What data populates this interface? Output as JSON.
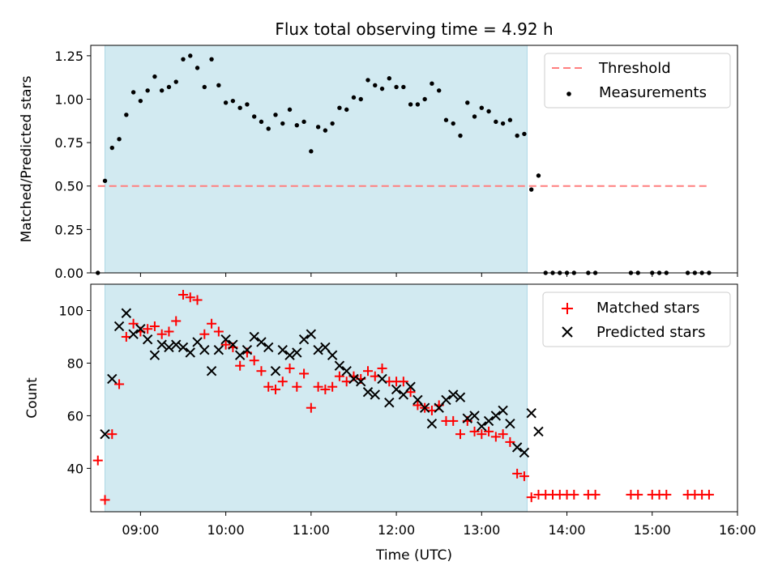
{
  "chart_data": [
    {
      "type": "scatter",
      "title": "Flux total observing time = 4.92 h",
      "ylabel": "Matched/Predicted stars",
      "xlabel": "",
      "xlim": [
        "08:25",
        "16:00"
      ],
      "ylim": [
        0,
        1.31
      ],
      "yticks": [
        "0.00",
        "0.25",
        "0.50",
        "0.75",
        "1.00",
        "1.25"
      ],
      "shaded_region": {
        "x_start": "08:35",
        "x_end": "13:32",
        "color": "#add8e6"
      },
      "legend_position": "upper right",
      "series": [
        {
          "name": "Threshold",
          "kind": "line",
          "style": "dashed",
          "color": "#ff7f7f",
          "x": [
            "08:30",
            "15:40"
          ],
          "y": [
            0.5,
            0.5
          ]
        },
        {
          "name": "Measurements",
          "kind": "scatter",
          "marker": "dot",
          "color": "#000000",
          "points": [
            [
              "08:30",
              0.0
            ],
            [
              "08:35",
              0.53
            ],
            [
              "08:40",
              0.72
            ],
            [
              "08:45",
              0.77
            ],
            [
              "08:50",
              0.91
            ],
            [
              "08:55",
              1.04
            ],
            [
              "09:00",
              0.99
            ],
            [
              "09:05",
              1.05
            ],
            [
              "09:10",
              1.13
            ],
            [
              "09:15",
              1.05
            ],
            [
              "09:20",
              1.07
            ],
            [
              "09:25",
              1.1
            ],
            [
              "09:30",
              1.23
            ],
            [
              "09:35",
              1.25
            ],
            [
              "09:40",
              1.18
            ],
            [
              "09:45",
              1.07
            ],
            [
              "09:50",
              1.23
            ],
            [
              "09:55",
              1.08
            ],
            [
              "10:00",
              0.98
            ],
            [
              "10:05",
              0.99
            ],
            [
              "10:10",
              0.95
            ],
            [
              "10:15",
              0.97
            ],
            [
              "10:20",
              0.9
            ],
            [
              "10:25",
              0.87
            ],
            [
              "10:30",
              0.83
            ],
            [
              "10:35",
              0.91
            ],
            [
              "10:40",
              0.86
            ],
            [
              "10:45",
              0.94
            ],
            [
              "10:50",
              0.85
            ],
            [
              "10:55",
              0.87
            ],
            [
              "11:00",
              0.7
            ],
            [
              "11:05",
              0.84
            ],
            [
              "11:10",
              0.82
            ],
            [
              "11:15",
              0.86
            ],
            [
              "11:20",
              0.95
            ],
            [
              "11:25",
              0.94
            ],
            [
              "11:30",
              1.01
            ],
            [
              "11:35",
              1.0
            ],
            [
              "11:40",
              1.11
            ],
            [
              "11:45",
              1.08
            ],
            [
              "11:50",
              1.06
            ],
            [
              "11:55",
              1.12
            ],
            [
              "12:00",
              1.07
            ],
            [
              "12:05",
              1.07
            ],
            [
              "12:10",
              0.97
            ],
            [
              "12:15",
              0.97
            ],
            [
              "12:20",
              1.0
            ],
            [
              "12:25",
              1.09
            ],
            [
              "12:30",
              1.05
            ],
            [
              "12:35",
              0.88
            ],
            [
              "12:40",
              0.86
            ],
            [
              "12:45",
              0.79
            ],
            [
              "12:50",
              0.98
            ],
            [
              "12:55",
              0.9
            ],
            [
              "13:00",
              0.95
            ],
            [
              "13:05",
              0.93
            ],
            [
              "13:10",
              0.87
            ],
            [
              "13:15",
              0.86
            ],
            [
              "13:20",
              0.88
            ],
            [
              "13:25",
              0.79
            ],
            [
              "13:30",
              0.8
            ],
            [
              "13:35",
              0.48
            ],
            [
              "13:40",
              0.56
            ],
            [
              "13:45",
              0.0
            ],
            [
              "13:50",
              0.0
            ],
            [
              "13:55",
              0.0
            ],
            [
              "14:00",
              0.0
            ],
            [
              "14:05",
              0.0
            ],
            [
              "14:15",
              0.0
            ],
            [
              "14:20",
              0.0
            ],
            [
              "14:45",
              0.0
            ],
            [
              "14:50",
              0.0
            ],
            [
              "15:00",
              0.0
            ],
            [
              "15:05",
              0.0
            ],
            [
              "15:10",
              0.0
            ],
            [
              "15:25",
              0.0
            ],
            [
              "15:30",
              0.0
            ],
            [
              "15:35",
              0.0
            ],
            [
              "15:40",
              0.0
            ]
          ]
        }
      ]
    },
    {
      "type": "scatter",
      "title": "",
      "xlabel": "Time (UTC)",
      "ylabel": "Count",
      "xlim": [
        "08:25",
        "16:00"
      ],
      "ylim": [
        23.5,
        110
      ],
      "xticks": [
        "09:00",
        "10:00",
        "11:00",
        "12:00",
        "13:00",
        "14:00",
        "15:00",
        "16:00"
      ],
      "yticks": [
        "40",
        "60",
        "80",
        "100"
      ],
      "shaded_region": {
        "x_start": "08:35",
        "x_end": "13:32",
        "color": "#add8e6"
      },
      "legend_position": "upper right",
      "series": [
        {
          "name": "Matched stars",
          "kind": "scatter",
          "marker": "plus",
          "color": "#ff0000",
          "points": [
            [
              "08:30",
              43
            ],
            [
              "08:35",
              28
            ],
            [
              "08:40",
              53
            ],
            [
              "08:45",
              72
            ],
            [
              "08:50",
              90
            ],
            [
              "08:55",
              95
            ],
            [
              "09:00",
              92
            ],
            [
              "09:05",
              93
            ],
            [
              "09:10",
              94
            ],
            [
              "09:15",
              91
            ],
            [
              "09:20",
              92
            ],
            [
              "09:25",
              96
            ],
            [
              "09:30",
              106
            ],
            [
              "09:35",
              105
            ],
            [
              "09:40",
              104
            ],
            [
              "09:45",
              91
            ],
            [
              "09:50",
              95
            ],
            [
              "09:55",
              92
            ],
            [
              "10:00",
              87
            ],
            [
              "10:05",
              86
            ],
            [
              "10:10",
              79
            ],
            [
              "10:15",
              84
            ],
            [
              "10:20",
              81
            ],
            [
              "10:25",
              77
            ],
            [
              "10:30",
              71
            ],
            [
              "10:35",
              70
            ],
            [
              "10:40",
              73
            ],
            [
              "10:45",
              78
            ],
            [
              "10:50",
              71
            ],
            [
              "10:55",
              76
            ],
            [
              "11:00",
              63
            ],
            [
              "11:05",
              71
            ],
            [
              "11:10",
              70
            ],
            [
              "11:15",
              71
            ],
            [
              "11:20",
              75
            ],
            [
              "11:25",
              73
            ],
            [
              "11:30",
              75
            ],
            [
              "11:35",
              74
            ],
            [
              "11:40",
              77
            ],
            [
              "11:45",
              75
            ],
            [
              "11:50",
              78
            ],
            [
              "11:55",
              73
            ],
            [
              "12:00",
              73
            ],
            [
              "12:05",
              73
            ],
            [
              "12:10",
              69
            ],
            [
              "12:15",
              64
            ],
            [
              "12:20",
              63
            ],
            [
              "12:25",
              62
            ],
            [
              "12:30",
              64
            ],
            [
              "12:35",
              58
            ],
            [
              "12:40",
              58
            ],
            [
              "12:45",
              53
            ],
            [
              "12:50",
              58
            ],
            [
              "12:55",
              54
            ],
            [
              "13:00",
              53
            ],
            [
              "13:05",
              54
            ],
            [
              "13:10",
              52
            ],
            [
              "13:15",
              53
            ],
            [
              "13:20",
              50
            ],
            [
              "13:25",
              38
            ],
            [
              "13:30",
              37
            ],
            [
              "13:35",
              29
            ],
            [
              "13:40",
              30
            ],
            [
              "13:45",
              30
            ],
            [
              "13:50",
              30
            ],
            [
              "13:55",
              30
            ],
            [
              "14:00",
              30
            ],
            [
              "14:05",
              30
            ],
            [
              "14:15",
              30
            ],
            [
              "14:20",
              30
            ],
            [
              "14:45",
              30
            ],
            [
              "14:50",
              30
            ],
            [
              "15:00",
              30
            ],
            [
              "15:05",
              30
            ],
            [
              "15:10",
              30
            ],
            [
              "15:25",
              30
            ],
            [
              "15:30",
              30
            ],
            [
              "15:35",
              30
            ],
            [
              "15:40",
              30
            ]
          ]
        },
        {
          "name": "Predicted stars",
          "kind": "scatter",
          "marker": "x",
          "color": "#000000",
          "points": [
            [
              "08:35",
              53
            ],
            [
              "08:40",
              74
            ],
            [
              "08:45",
              94
            ],
            [
              "08:50",
              99
            ],
            [
              "08:55",
              91
            ],
            [
              "09:00",
              93
            ],
            [
              "09:05",
              89
            ],
            [
              "09:10",
              83
            ],
            [
              "09:15",
              87
            ],
            [
              "09:20",
              86
            ],
            [
              "09:25",
              87
            ],
            [
              "09:30",
              86
            ],
            [
              "09:35",
              84
            ],
            [
              "09:40",
              88
            ],
            [
              "09:45",
              85
            ],
            [
              "09:50",
              77
            ],
            [
              "09:55",
              85
            ],
            [
              "10:00",
              89
            ],
            [
              "10:05",
              87
            ],
            [
              "10:10",
              83
            ],
            [
              "10:15",
              85
            ],
            [
              "10:20",
              90
            ],
            [
              "10:25",
              88
            ],
            [
              "10:30",
              86
            ],
            [
              "10:35",
              77
            ],
            [
              "10:40",
              85
            ],
            [
              "10:45",
              83
            ],
            [
              "10:50",
              84
            ],
            [
              "10:55",
              89
            ],
            [
              "11:00",
              91
            ],
            [
              "11:05",
              85
            ],
            [
              "11:10",
              86
            ],
            [
              "11:15",
              83
            ],
            [
              "11:20",
              79
            ],
            [
              "11:25",
              77
            ],
            [
              "11:30",
              74
            ],
            [
              "11:35",
              73
            ],
            [
              "11:40",
              69
            ],
            [
              "11:45",
              68
            ],
            [
              "11:50",
              74
            ],
            [
              "11:55",
              65
            ],
            [
              "12:00",
              70
            ],
            [
              "12:05",
              68
            ],
            [
              "12:10",
              71
            ],
            [
              "12:15",
              66
            ],
            [
              "12:20",
              63
            ],
            [
              "12:25",
              57
            ],
            [
              "12:30",
              63
            ],
            [
              "12:35",
              66
            ],
            [
              "12:40",
              68
            ],
            [
              "12:45",
              67
            ],
            [
              "12:50",
              59
            ],
            [
              "12:55",
              60
            ],
            [
              "13:00",
              56
            ],
            [
              "13:05",
              58
            ],
            [
              "13:10",
              60
            ],
            [
              "13:15",
              62
            ],
            [
              "13:20",
              57
            ],
            [
              "13:25",
              48
            ],
            [
              "13:30",
              46
            ],
            [
              "13:35",
              61
            ],
            [
              "13:40",
              54
            ]
          ]
        }
      ]
    }
  ]
}
